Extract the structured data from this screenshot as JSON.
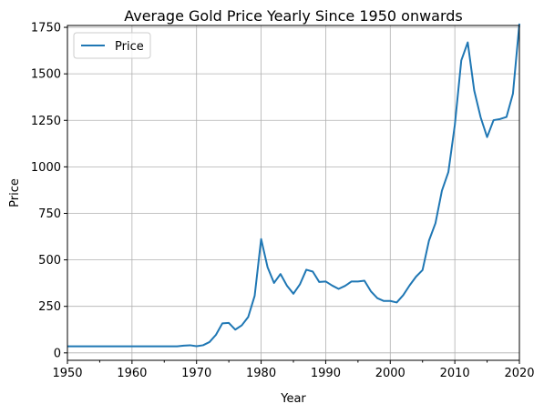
{
  "chart_data": {
    "type": "line",
    "title": "Average Gold Price Yearly Since 1950 onwards",
    "xlabel": "Year",
    "ylabel": "Price",
    "xlim": [
      1950,
      2020
    ],
    "ylim": [
      -40,
      1760
    ],
    "xticks": [
      1950,
      1960,
      1970,
      1980,
      1990,
      2000,
      2010,
      2020
    ],
    "yticks": [
      0,
      250,
      500,
      750,
      1000,
      1250,
      1500,
      1750
    ],
    "grid": true,
    "legend_position": "upper-left",
    "series": [
      {
        "name": "Price",
        "color": "#1f77b4",
        "x": [
          1950,
          1951,
          1952,
          1953,
          1954,
          1955,
          1956,
          1957,
          1958,
          1959,
          1960,
          1961,
          1962,
          1963,
          1964,
          1965,
          1966,
          1967,
          1968,
          1969,
          1970,
          1971,
          1972,
          1973,
          1974,
          1975,
          1976,
          1977,
          1978,
          1979,
          1980,
          1981,
          1982,
          1983,
          1984,
          1985,
          1986,
          1987,
          1988,
          1989,
          1990,
          1991,
          1992,
          1993,
          1994,
          1995,
          1996,
          1997,
          1998,
          1999,
          2000,
          2001,
          2002,
          2003,
          2004,
          2005,
          2006,
          2007,
          2008,
          2009,
          2010,
          2011,
          2012,
          2013,
          2014,
          2015,
          2016,
          2017,
          2018,
          2019,
          2020
        ],
        "y": [
          35,
          35,
          35,
          35,
          35,
          35,
          35,
          35,
          35,
          35,
          35,
          35,
          35,
          35,
          35,
          35,
          35,
          35,
          39,
          41,
          36,
          41,
          58,
          97,
          159,
          161,
          125,
          148,
          193,
          307,
          612,
          460,
          376,
          424,
          361,
          318,
          368,
          447,
          437,
          381,
          384,
          362,
          344,
          360,
          384,
          384,
          388,
          331,
          294,
          279,
          279,
          271,
          310,
          363,
          410,
          445,
          604,
          697,
          872,
          972,
          1225,
          1572,
          1669,
          1411,
          1266,
          1160,
          1251,
          1257,
          1268,
          1393,
          1770
        ]
      }
    ]
  }
}
